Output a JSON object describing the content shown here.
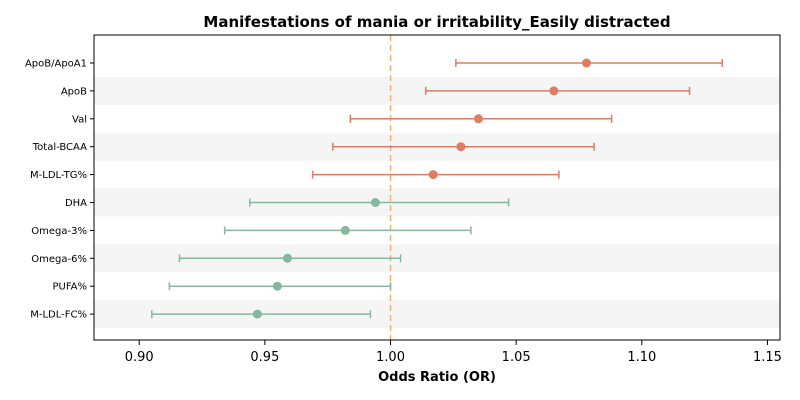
{
  "chart_data": {
    "type": "forest",
    "title": "Manifestations of mania or irritability_Easily distracted",
    "xlabel": "Odds Ratio (OR)",
    "ylabel": "",
    "xlim": [
      0.882,
      1.155
    ],
    "x_ticks": [
      0.9,
      0.95,
      1.0,
      1.05,
      1.1,
      1.15
    ],
    "x_tick_labels": [
      "0.90",
      "0.95",
      "1.00",
      "1.05",
      "1.10",
      "1.15"
    ],
    "reference_line": 1.0,
    "colors": {
      "risk": "#E07B64",
      "protective": "#86B8A0",
      "reference": "#F0B070",
      "band": "#F5F5F5",
      "axis": "#000000"
    },
    "rows": [
      {
        "label": "ApoB/ApoA1",
        "or": 1.078,
        "lower": 1.026,
        "upper": 1.132,
        "group": "risk"
      },
      {
        "label": "ApoB",
        "or": 1.065,
        "lower": 1.014,
        "upper": 1.119,
        "group": "risk"
      },
      {
        "label": "Val",
        "or": 1.035,
        "lower": 0.984,
        "upper": 1.088,
        "group": "risk"
      },
      {
        "label": "Total-BCAA",
        "or": 1.028,
        "lower": 0.977,
        "upper": 1.081,
        "group": "risk"
      },
      {
        "label": "M-LDL-TG%",
        "or": 1.017,
        "lower": 0.969,
        "upper": 1.067,
        "group": "risk"
      },
      {
        "label": "DHA",
        "or": 0.994,
        "lower": 0.944,
        "upper": 1.047,
        "group": "protective"
      },
      {
        "label": "Omega-3%",
        "or": 0.982,
        "lower": 0.934,
        "upper": 1.032,
        "group": "protective"
      },
      {
        "label": "Omega-6%",
        "or": 0.959,
        "lower": 0.916,
        "upper": 1.004,
        "group": "protective"
      },
      {
        "label": "PUFA%",
        "or": 0.955,
        "lower": 0.912,
        "upper": 1.0,
        "group": "protective"
      },
      {
        "label": "M-LDL-FC%",
        "or": 0.947,
        "lower": 0.905,
        "upper": 0.992,
        "group": "protective"
      }
    ]
  }
}
